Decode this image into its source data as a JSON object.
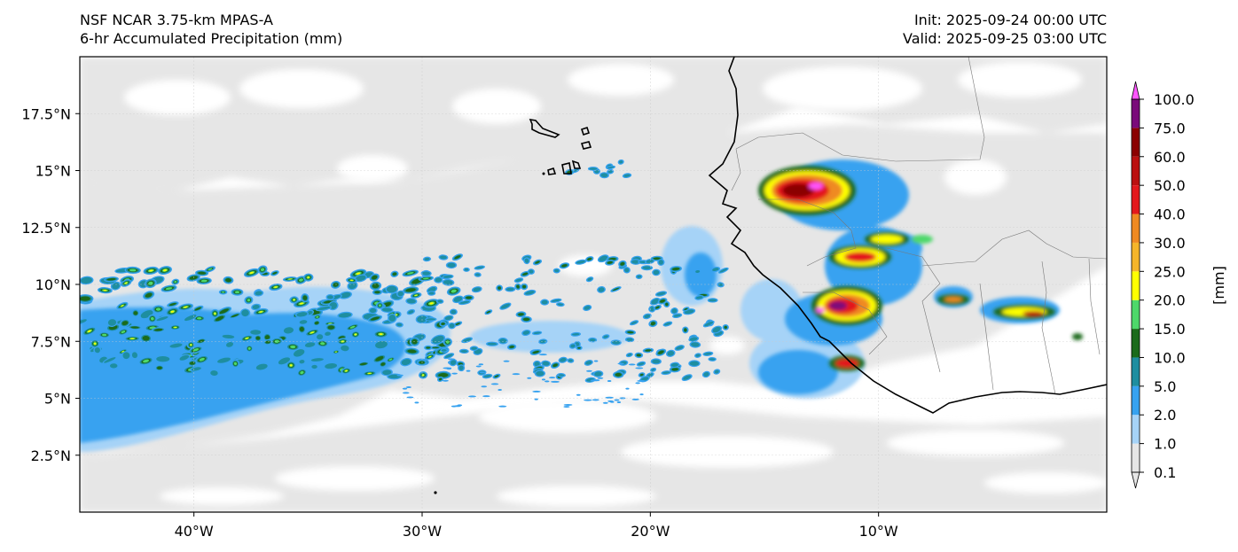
{
  "header": {
    "model_title": "NSF NCAR 3.75-km MPAS-A",
    "field_title": "6-hr Accumulated Precipitation (mm)",
    "init_time": "Init: 2025-09-24 00:00 UTC",
    "valid_time": "Valid: 2025-09-25 03:00 UTC"
  },
  "map": {
    "lon_range": [
      -45,
      0
    ],
    "lat_range": [
      0,
      20
    ],
    "lon_ticks": [
      {
        "lon": -40,
        "label": "40°W"
      },
      {
        "lon": -30,
        "label": "30°W"
      },
      {
        "lon": -20,
        "label": "20°W"
      },
      {
        "lon": -10,
        "label": "10°W"
      }
    ],
    "lat_ticks": [
      {
        "lat": 2.5,
        "label": "2.5°N"
      },
      {
        "lat": 5,
        "label": "5°N"
      },
      {
        "lat": 7.5,
        "label": "7.5°N"
      },
      {
        "lat": 10,
        "label": "10°N"
      },
      {
        "lat": 12.5,
        "label": "12.5°N"
      },
      {
        "lat": 15,
        "label": "15°N"
      },
      {
        "lat": 17.5,
        "label": "17.5°N"
      }
    ],
    "background_color": "#e6e6e6",
    "coastline_color": "#000000",
    "border_color": "#888888"
  },
  "colorbar": {
    "unit_label": "[mm]",
    "levels": [
      {
        "label": "0.1",
        "color": "#e6e6e6"
      },
      {
        "label": "1.0",
        "color": "#a6d3f7"
      },
      {
        "label": "2.0",
        "color": "#37a2f0"
      },
      {
        "label": "5.0",
        "color": "#1e8ea0"
      },
      {
        "label": "10.0",
        "color": "#1b6b1b"
      },
      {
        "label": "15.0",
        "color": "#4ed86a"
      },
      {
        "label": "20.0",
        "color": "#ffff00"
      },
      {
        "label": "25.0",
        "color": "#f5b52a"
      },
      {
        "label": "30.0",
        "color": "#ef8a22"
      },
      {
        "label": "40.0",
        "color": "#e3181c"
      },
      {
        "label": "50.0",
        "color": "#bb1010"
      },
      {
        "label": "60.0",
        "color": "#8b0000"
      },
      {
        "label": "75.0",
        "color": "#7a0a7a"
      },
      {
        "label": "100.0",
        "color": "#ff55ff"
      }
    ]
  },
  "chart_data": {
    "type": "heatmap",
    "title": "6-hr Accumulated Precipitation (mm)",
    "xlabel": "",
    "ylabel": "",
    "xlim": [
      -45,
      0
    ],
    "ylim": [
      0,
      20
    ],
    "colorbar_label": "[mm]",
    "colorbar_levels": [
      0.1,
      1.0,
      2.0,
      5.0,
      10.0,
      15.0,
      20.0,
      25.0,
      30.0,
      40.0,
      50.0,
      60.0,
      75.0,
      100.0
    ],
    "features": [
      {
        "region": "ITCZ band over Atlantic",
        "lon": [
          -45,
          -20
        ],
        "lat": [
          3,
          10
        ],
        "typical_mm": "1-20"
      },
      {
        "region": "Convective cluster near Senegal/Guinea",
        "lon": [
          -16,
          -12
        ],
        "lat": [
          12.5,
          15
        ],
        "max_mm": "75-100"
      },
      {
        "region": "Convective cluster near Guinea/Sierra Leone",
        "lon": [
          -14,
          -11
        ],
        "lat": [
          7,
          10.5
        ],
        "max_mm": "60-100"
      },
      {
        "region": "Convection over Guinea interior",
        "lon": [
          -14,
          -10
        ],
        "lat": [
          10.5,
          12
        ],
        "max_mm": "40-60"
      },
      {
        "region": "Convection over Cote d'Ivoire/Ghana",
        "lon": [
          -7,
          -1
        ],
        "lat": [
          8,
          9.5
        ],
        "max_mm": "30-50"
      }
    ]
  }
}
